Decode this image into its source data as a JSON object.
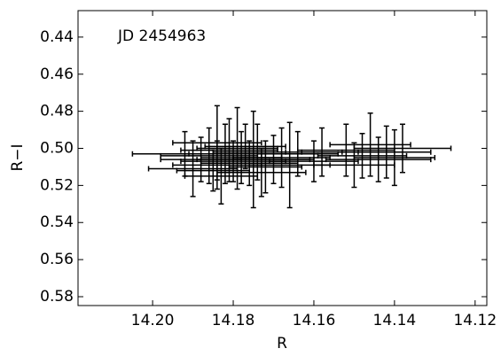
{
  "chart_data": {
    "type": "errorbar",
    "annotation": "JD 2454963",
    "xlabel": "R",
    "ylabel": "R−I",
    "xlim": [
      14.2185,
      14.1171
    ],
    "ylim": [
      0.4257,
      0.5848
    ],
    "xticks": [
      {
        "value": 14.2,
        "label": "14.20"
      },
      14.18,
      14.16,
      14.14,
      14.12
    ],
    "yticks": [
      0.44,
      0.46,
      0.48,
      {
        "value": 0.5,
        "label": "0.50"
      },
      0.52,
      0.54,
      0.56,
      0.58
    ],
    "color": "#000000",
    "x": [
      14.188,
      14.186,
      14.184,
      14.182,
      14.18,
      14.178,
      14.176,
      14.174,
      14.172,
      14.17,
      14.19,
      14.192,
      14.185,
      14.181,
      14.177,
      14.173,
      14.168,
      14.164,
      14.16,
      14.158,
      14.152,
      14.148,
      14.146,
      14.144,
      14.142,
      14.14,
      14.138,
      14.15,
      14.184,
      14.179,
      14.183,
      14.166,
      14.175
    ],
    "y": [
      0.506,
      0.504,
      0.509,
      0.503,
      0.507,
      0.505,
      0.508,
      0.502,
      0.51,
      0.506,
      0.511,
      0.503,
      0.512,
      0.501,
      0.499,
      0.513,
      0.505,
      0.503,
      0.507,
      0.502,
      0.501,
      0.504,
      0.498,
      0.506,
      0.502,
      0.505,
      0.5,
      0.509,
      0.497,
      0.5,
      0.515,
      0.509,
      0.506
    ],
    "xerr": [
      0.01,
      0.012,
      0.011,
      0.009,
      0.013,
      0.01,
      0.012,
      0.011,
      0.009,
      0.01,
      0.011,
      0.013,
      0.009,
      0.012,
      0.01,
      0.011,
      0.012,
      0.01,
      0.011,
      0.009,
      0.012,
      0.011,
      0.01,
      0.013,
      0.011,
      0.01,
      0.012,
      0.01,
      0.011,
      0.01,
      0.009,
      0.01,
      0.014
    ],
    "yerr": [
      0.012,
      0.015,
      0.013,
      0.016,
      0.011,
      0.014,
      0.012,
      0.015,
      0.014,
      0.013,
      0.015,
      0.012,
      0.011,
      0.017,
      0.012,
      0.013,
      0.016,
      0.012,
      0.011,
      0.013,
      0.014,
      0.012,
      0.017,
      0.012,
      0.014,
      0.015,
      0.013,
      0.012,
      0.02,
      0.022,
      0.015,
      0.023,
      0.026
    ]
  }
}
